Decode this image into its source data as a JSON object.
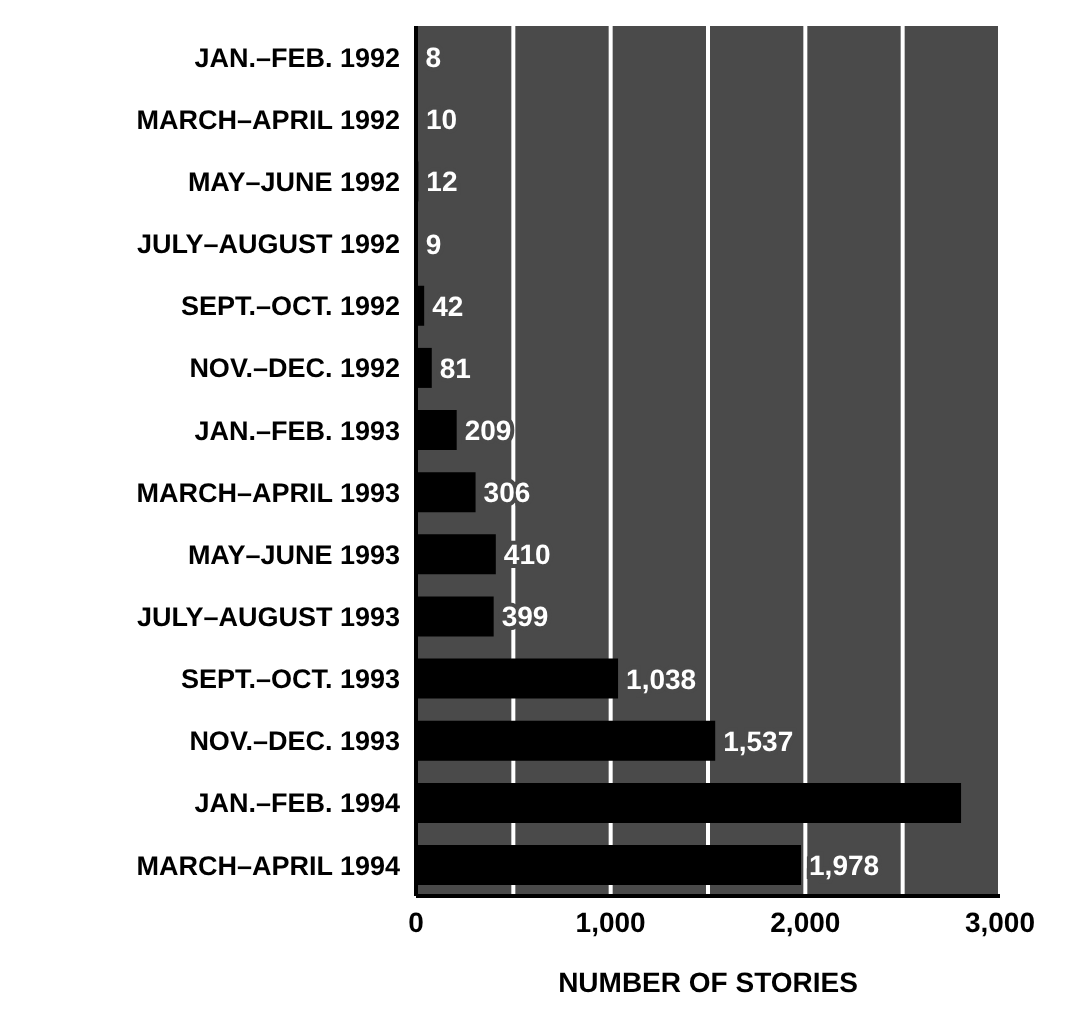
{
  "chart_data": {
    "type": "bar",
    "orientation": "horizontal",
    "xlabel": "NUMBER OF STORIES",
    "categories": [
      "JAN.–FEB. 1992",
      "MARCH–APRIL 1992",
      "MAY–JUNE 1992",
      "JULY–AUGUST 1992",
      "SEPT.–OCT. 1992",
      "NOV.–DEC. 1992",
      "JAN.–FEB. 1993",
      "MARCH–APRIL 1993",
      "MAY–JUNE 1993",
      "JULY–AUGUST 1993",
      "SEPT.–OCT. 1993",
      "NOV.–DEC. 1993",
      "JAN.–FEB. 1994",
      "MARCH–APRIL 1994"
    ],
    "values": [
      8,
      10,
      12,
      9,
      42,
      81,
      209,
      306,
      410,
      399,
      1038,
      1537,
      2800,
      1978
    ],
    "value_labels": [
      "8",
      "10",
      "12",
      "9",
      "42",
      "81",
      "209",
      "306",
      "410",
      "399",
      "1,038",
      "1,537",
      null,
      "1,978"
    ],
    "color": "#000000",
    "xlim": [
      0,
      3000
    ],
    "xticks": [
      0,
      {
        "value": 500,
        "label": null
      },
      {
        "value": 1000,
        "label": "1,000"
      },
      {
        "value": 1500,
        "label": null
      },
      {
        "value": 2000,
        "label": "2,000"
      },
      {
        "value": 2500,
        "label": null
      },
      {
        "value": 3000,
        "label": "3,000"
      }
    ],
    "grid": "x"
  }
}
